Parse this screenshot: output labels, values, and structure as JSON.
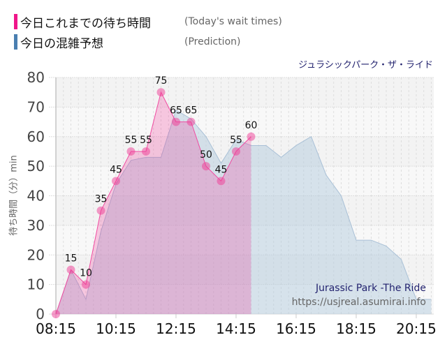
{
  "legend": {
    "actual": {
      "label": "今日これまでの待ち時間",
      "sub": "(Today's wait times)",
      "color": "#f0168a"
    },
    "prediction": {
      "label": "今日の混雑予想",
      "sub": "(Prediction)",
      "color": "#4a7fb0"
    }
  },
  "ride_name_jp": "ジュラシックパーク・ザ・ライド",
  "ride_name_en": "Jurassic Park -The Ride",
  "site_url": "https://usjreal.asumirai.info",
  "chart_data": {
    "type": "area",
    "ylabel": "待ち時間（分）min",
    "ylim": [
      0,
      80
    ],
    "yticks": [
      0,
      10,
      20,
      30,
      40,
      50,
      60,
      70,
      80
    ],
    "xlim": [
      "08:15",
      "20:45"
    ],
    "xticks": [
      "08:15",
      "10:15",
      "12:15",
      "14:15",
      "16:15",
      "18:15",
      "20:15"
    ],
    "grid": true,
    "series": [
      {
        "name": "今日これまでの待ち時間",
        "color": "#f0168a",
        "x": [
          "08:15",
          "08:45",
          "09:15",
          "09:45",
          "10:15",
          "10:45",
          "11:15",
          "11:45",
          "12:15",
          "12:45",
          "13:15",
          "13:45",
          "14:15",
          "14:45"
        ],
        "values": [
          0,
          15,
          10,
          35,
          45,
          55,
          55,
          75,
          65,
          65,
          50,
          45,
          55,
          60
        ],
        "data_labels": true
      },
      {
        "name": "今日の混雑予想",
        "color": "#8fb0cc",
        "x": [
          "08:15",
          "08:45",
          "09:15",
          "09:45",
          "10:15",
          "10:45",
          "11:15",
          "11:45",
          "12:15",
          "12:45",
          "13:15",
          "13:45",
          "14:15",
          "14:45",
          "15:15",
          "15:45",
          "16:15",
          "16:45",
          "17:15",
          "17:45",
          "18:15",
          "18:45",
          "19:15",
          "19:45",
          "20:15",
          "20:45"
        ],
        "values": [
          0,
          15,
          5,
          28,
          44,
          52,
          53,
          53,
          69,
          66,
          60,
          51,
          59,
          57,
          57,
          53,
          57,
          60,
          47,
          40,
          25,
          25,
          23,
          18.5,
          5,
          5
        ]
      }
    ]
  }
}
